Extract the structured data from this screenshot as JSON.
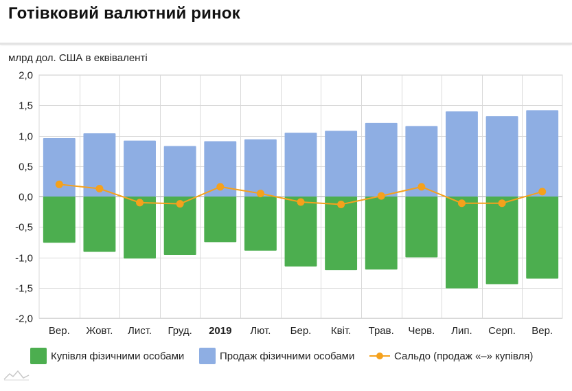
{
  "page": {
    "title": "Готівковий валютний ринок",
    "unit_label": "млрд дол. США в еквіваленті"
  },
  "legend": {
    "purchase": "Купівля фізичними особами",
    "sale": "Продаж фізичними особами",
    "balance": "Сальдо (продаж «–» купівля)"
  },
  "colors": {
    "purchase": "#4cae4f",
    "sale": "#8eaee3",
    "balance": "#f5a11c",
    "grid": "#d9d9d9"
  },
  "chart_data": {
    "type": "bar",
    "categories": [
      "Вер.",
      "Жовт.",
      "Лист.",
      "Груд.",
      "2019",
      "Лют.",
      "Бер.",
      "Квіт.",
      "Трав.",
      "Черв.",
      "Лип.",
      "Серп.",
      "Вер."
    ],
    "bold_categories": [
      "2019"
    ],
    "series": [
      {
        "name": "Купівля фізичними особами",
        "kind": "bar",
        "values": [
          -0.76,
          -0.91,
          -1.02,
          -0.96,
          -0.75,
          -0.89,
          -1.15,
          -1.21,
          -1.2,
          -1.0,
          -1.51,
          -1.44,
          -1.35
        ]
      },
      {
        "name": "Продаж фізичними особами",
        "kind": "bar",
        "values": [
          0.96,
          1.04,
          0.92,
          0.83,
          0.91,
          0.94,
          1.05,
          1.08,
          1.21,
          1.16,
          1.4,
          1.32,
          1.42
        ]
      },
      {
        "name": "Сальдо (продаж «–» купівля)",
        "kind": "line",
        "values": [
          0.2,
          0.13,
          -0.1,
          -0.12,
          0.16,
          0.05,
          -0.09,
          -0.13,
          0.01,
          0.16,
          -0.11,
          -0.11,
          0.08
        ]
      }
    ],
    "yticks": [
      "2,0",
      "1,5",
      "1,0",
      "0,5",
      "0,0",
      "-0,5",
      "-1,0",
      "-1,5",
      "-2,0"
    ],
    "ylim": [
      -2.0,
      2.0
    ],
    "xlabel": "",
    "ylabel": "млрд дол. США в еквіваленті",
    "grid": true,
    "legend_position": "bottom"
  }
}
